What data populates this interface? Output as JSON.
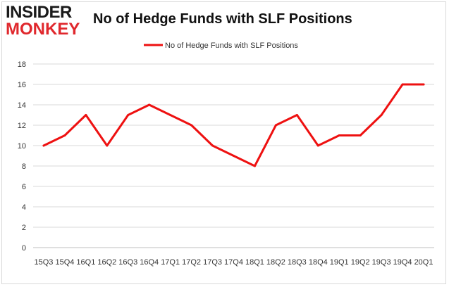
{
  "logo": {
    "top": "INSIDER",
    "bottom": "MONKEY"
  },
  "chart_data": {
    "type": "line",
    "title": "No of Hedge Funds with SLF Positions",
    "xlabel": "",
    "ylabel": "",
    "categories": [
      "15Q3",
      "15Q4",
      "16Q1",
      "16Q2",
      "16Q3",
      "16Q4",
      "17Q1",
      "17Q2",
      "17Q3",
      "17Q4",
      "18Q1",
      "18Q2",
      "18Q3",
      "18Q4",
      "19Q1",
      "19Q2",
      "19Q3",
      "19Q4",
      "20Q1"
    ],
    "series": [
      {
        "name": "No of Hedge Funds with SLF Positions",
        "color": "#ee1111",
        "values": [
          10,
          11,
          13,
          10,
          13,
          14,
          13,
          12,
          10,
          9,
          8,
          12,
          13,
          10,
          11,
          11,
          13,
          16,
          16
        ]
      }
    ],
    "ylim": [
      0,
      18
    ],
    "yticks": [
      0,
      2,
      4,
      6,
      8,
      10,
      12,
      14,
      16,
      18
    ],
    "grid": true,
    "legend": "top-center"
  }
}
